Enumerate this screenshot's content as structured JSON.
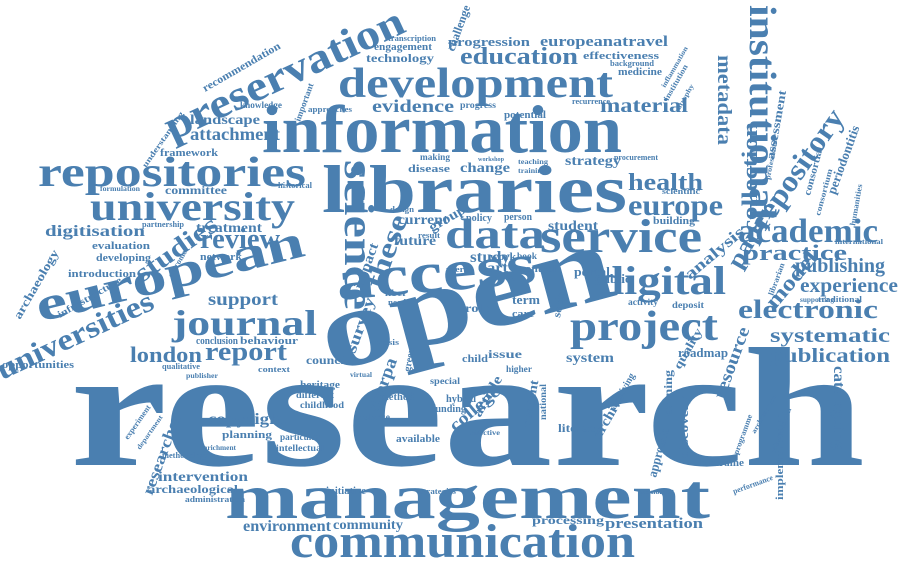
{
  "colors": {
    "word": "#4a7fb0",
    "background": "#ffffff"
  },
  "words": {
    "research": "research",
    "management": "management",
    "communication": "communication",
    "open": "open",
    "information": "information",
    "libraries": "libraries",
    "development": "development",
    "preservation": "preservation",
    "repositories": "repositories",
    "university": "university",
    "european": "european",
    "science": "science",
    "access": "access",
    "data": "data",
    "service": "service",
    "digital": "digital",
    "project": "project",
    "journal": "journal",
    "universities": "universities",
    "institutional": "institutional",
    "academic": "academic",
    "europe": "europe",
    "repository": "repository",
    "health": "health",
    "collection": "collection",
    "metadata": "metadata",
    "review": "review",
    "studies": "studies",
    "report": "report",
    "london": "london",
    "support": "support",
    "education": "education",
    "evidence": "evidence",
    "material": "material",
    "electronic": "electronic",
    "systematic": "systematic",
    "publication": "publication",
    "publishing": "publishing",
    "practice": "practice",
    "experience": "experience",
    "paper": "paper",
    "model": "model",
    "analysis": "analysis",
    "attachment": "attachment",
    "landscape": "landscape",
    "digitisation": "digitisation",
    "europeanatravel": "europeanatravel",
    "progression": "progression",
    "technology": "technology",
    "engagement": "engagement",
    "effectiveness": "effectiveness",
    "recommendation": "recommendation",
    "framework": "framework",
    "committee": "committee",
    "treatment": "treatment",
    "evaluation": "evaluation",
    "developing": "developing",
    "network": "network",
    "introduction": "introduction",
    "infrastructure": "infrastructure",
    "archaeology": "archaeology",
    "opportunities": "opportunities",
    "behaviour": "behaviour",
    "conclusion": "conclusion",
    "copyright": "copyright",
    "planning": "planning",
    "intervention": "intervention",
    "archaeological": "archaeological",
    "administration": "administration",
    "environment": "environment",
    "community": "community",
    "processing": "processing",
    "presentation": "presentation",
    "cataloguing": "cataloguing",
    "implementation": "implementation",
    "bibframe": "bibframe",
    "discovery": "discovery",
    "learning": "learning",
    "archive": "archive",
    "resource": "resource",
    "quality": "quality",
    "roadmap": "roadmap",
    "system": "system",
    "council": "council",
    "college": "college",
    "current": "current",
    "future": "future",
    "study": "study",
    "work": "work",
    "portal": "portal",
    "public": "public",
    "control": "control",
    "literacy": "literacy",
    "strategy": "strategy",
    "student": "student",
    "building": "building",
    "change": "change",
    "disease": "disease",
    "making": "making",
    "group": "group",
    "challenge": "challenge",
    "periodontitis": "periodontitis",
    "consortial": "consortial",
    "assessment": "assessment",
    "researcher": "researcher",
    "sherpa": "sherpa",
    "these": "these",
    "survey": "survey",
    "impact": "impact",
    "dart": "dart",
    "issue": "issue",
    "child": "child",
    "term": "term",
    "social": "social",
    "role": "role",
    "care": "care",
    "article": "article",
    "content": "content",
    "funding": "funding",
    "heritage": "heritage",
    "method": "method",
    "different": "different",
    "childhood": "childhood",
    "context": "context",
    "particular": "particular",
    "intellectual": "intellectual",
    "initiative": "initiative",
    "strategies": "strategies",
    "available": "available",
    "prolapse": "prolapse",
    "hybrid": "hybrid",
    "national": "national",
    "special": "special",
    "higher": "higher",
    "green": "green",
    "thesis": "thesis",
    "medicine": "medicine",
    "potential": "potential",
    "recurrence": "recurrence",
    "background": "background",
    "procurement": "procurement",
    "progress": "progress",
    "transcription": "transcription",
    "approaches": "approaches",
    "knowledge": "knowledge",
    "important": "important",
    "understanding": "understanding",
    "historical": "historical",
    "scientific": "scientific",
    "librarian": "librarian",
    "traditional": "traditional",
    "international": "international",
    "deposit": "deposit",
    "activity": "activity",
    "consortium": "consortium",
    "humanities": "humanities",
    "professional": "professional",
    "performance": "performance",
    "economist": "economist",
    "approach": "approach",
    "book": "book",
    "person": "person",
    "policy": "policy",
    "design": "design",
    "result": "result",
    "liber": "liber",
    "need": "need",
    "user": "user",
    "teaching": "teaching",
    "training": "training",
    "workshop": "workshop",
    "formulation": "formulation",
    "partnership": "partnership",
    "outcome": "outcome",
    "qualitative": "qualitative",
    "experiment": "experiment",
    "department": "department",
    "methodology": "methodology",
    "enrichment": "enrichment",
    "virtual": "virtual",
    "effective": "effective",
    "archiving": "archiving",
    "programme": "programme",
    "architecture": "architecture",
    "collaboration": "collaboration",
    "institution": "institution",
    "inflammation": "inflammation",
    "atrophy": "atrophy",
    "publisher": "publisher",
    "supporting": "supporting"
  }
}
